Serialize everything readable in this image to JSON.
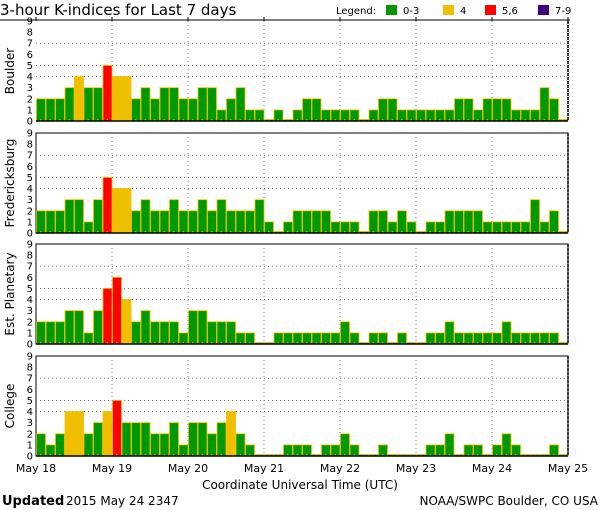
{
  "chart_data": {
    "type": "bar",
    "title": "3-hour K-indices for Last 7 days",
    "xlabel": "Coordinate Universal Time (UTC)",
    "x_ticks": [
      "May 18",
      "May 19",
      "May 20",
      "May 21",
      "May 22",
      "May 23",
      "May 24",
      "May 25"
    ],
    "bars_per_day": 8,
    "ylim": [
      0,
      9
    ],
    "y_ticks": [
      "0",
      "1",
      "2",
      "3",
      "4",
      "5",
      "6",
      "7",
      "8",
      "9"
    ],
    "grid_levels": [
      4,
      5,
      7
    ],
    "legend": {
      "label": "Legend:",
      "placement": "top-right",
      "entries": [
        {
          "label": "0-3",
          "color": "#009900"
        },
        {
          "label": "4",
          "color": "#f0c000"
        },
        {
          "label": "5,6",
          "color": "#ff0000"
        },
        {
          "label": "7-9",
          "color": "#400080"
        }
      ]
    },
    "series": [
      {
        "name": "Boulder",
        "values": [
          2,
          2,
          2,
          3,
          4,
          3,
          3,
          5,
          4,
          4,
          2,
          3,
          2,
          3,
          3,
          2,
          2,
          3,
          3,
          1,
          2,
          3,
          1,
          1,
          0,
          1,
          0,
          1,
          2,
          2,
          1,
          1,
          1,
          1,
          0,
          1,
          2,
          2,
          1,
          1,
          1,
          1,
          1,
          1,
          2,
          2,
          1,
          2,
          2,
          2,
          1,
          1,
          1,
          3,
          2,
          0
        ]
      },
      {
        "name": "Fredericksburg",
        "values": [
          2,
          2,
          2,
          3,
          3,
          1,
          3,
          5,
          4,
          4,
          2,
          3,
          2,
          2,
          3,
          2,
          2,
          3,
          2,
          3,
          2,
          2,
          2,
          3,
          1,
          0,
          1,
          2,
          2,
          2,
          2,
          1,
          1,
          1,
          0,
          2,
          2,
          1,
          2,
          1,
          0,
          1,
          1,
          2,
          2,
          2,
          2,
          1,
          1,
          1,
          1,
          1,
          3,
          1,
          2,
          0
        ]
      },
      {
        "name": "Est. Planetary",
        "values": [
          2,
          2,
          2,
          3,
          3,
          1,
          3,
          5,
          6,
          4,
          2,
          3,
          2,
          2,
          2,
          1,
          3,
          3,
          2,
          2,
          2,
          1,
          1,
          0,
          0,
          1,
          1,
          1,
          1,
          1,
          1,
          1,
          2,
          1,
          0,
          1,
          1,
          0,
          1,
          0,
          0,
          1,
          1,
          2,
          1,
          1,
          1,
          1,
          1,
          2,
          1,
          1,
          1,
          1,
          1,
          0
        ]
      },
      {
        "name": "College",
        "values": [
          2,
          1,
          2,
          4,
          4,
          2,
          3,
          4,
          5,
          3,
          3,
          3,
          2,
          2,
          3,
          1,
          3,
          3,
          2,
          3,
          4,
          2,
          1,
          0,
          0,
          0,
          1,
          1,
          1,
          0,
          1,
          1,
          2,
          1,
          0,
          0,
          1,
          0,
          0,
          0,
          0,
          1,
          1,
          2,
          0,
          1,
          1,
          0,
          1,
          2,
          1,
          0,
          0,
          0,
          1,
          0
        ]
      }
    ]
  },
  "footer": {
    "updated_label": "Updated",
    "updated_value": "2015 May 24 2347",
    "source": "NOAA/SWPC Boulder, CO USA"
  }
}
